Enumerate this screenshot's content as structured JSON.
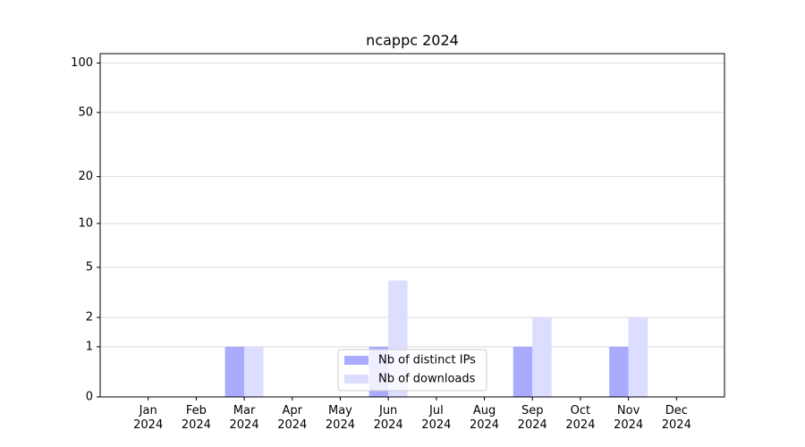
{
  "chart_data": {
    "type": "bar",
    "title": "ncappc 2024",
    "categories": [
      "Jan\n2024",
      "Feb\n2024",
      "Mar\n2024",
      "Apr\n2024",
      "May\n2024",
      "Jun\n2024",
      "Jul\n2024",
      "Aug\n2024",
      "Sep\n2024",
      "Oct\n2024",
      "Nov\n2024",
      "Dec\n2024"
    ],
    "series": [
      {
        "name": "Nb of distinct IPs",
        "color": "#aaaaff",
        "values": [
          0,
          0,
          1,
          0,
          0,
          1,
          0,
          0,
          1,
          0,
          1,
          0
        ]
      },
      {
        "name": "Nb of downloads",
        "color": "#ddddff",
        "values": [
          0,
          0,
          1,
          0,
          0,
          4,
          0,
          0,
          2,
          0,
          2,
          0
        ]
      }
    ],
    "yscale": "log1p",
    "ylim": [
      0,
      114
    ],
    "yticks": [
      0,
      1,
      2,
      5,
      10,
      20,
      50,
      100
    ],
    "grid": true,
    "legend": "lower center"
  }
}
